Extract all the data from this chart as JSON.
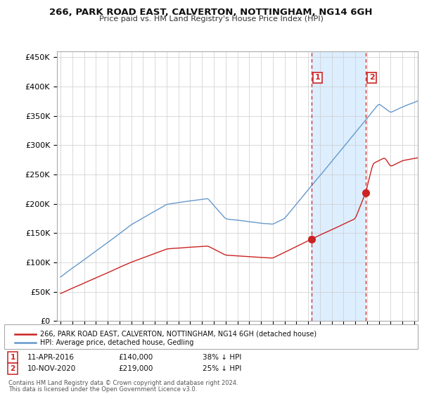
{
  "title": "266, PARK ROAD EAST, CALVERTON, NOTTINGHAM, NG14 6GH",
  "subtitle": "Price paid vs. HM Land Registry's House Price Index (HPI)",
  "ylabel_ticks": [
    "£0",
    "£50K",
    "£100K",
    "£150K",
    "£200K",
    "£250K",
    "£300K",
    "£350K",
    "£400K",
    "£450K"
  ],
  "ytick_vals": [
    0,
    50000,
    100000,
    150000,
    200000,
    250000,
    300000,
    350000,
    400000,
    450000
  ],
  "ylim": [
    0,
    460000
  ],
  "xlim_start": 1994.7,
  "xlim_end": 2025.3,
  "sale1": {
    "date": 2016.28,
    "price": 140000,
    "label": "1"
  },
  "sale2": {
    "date": 2020.87,
    "price": 219000,
    "label": "2"
  },
  "legend_line1": "266, PARK ROAD EAST, CALVERTON, NOTTINGHAM, NG14 6GH (detached house)",
  "legend_line2": "HPI: Average price, detached house, Gedling",
  "footer1": "Contains HM Land Registry data © Crown copyright and database right 2024.",
  "footer2": "This data is licensed under the Open Government Licence v3.0.",
  "table_row1": [
    "1",
    "11-APR-2016",
    "£140,000",
    "38% ↓ HPI"
  ],
  "table_row2": [
    "2",
    "10-NOV-2020",
    "£219,000",
    "25% ↓ HPI"
  ],
  "hpi_color": "#6699cc",
  "price_color": "#cc2222",
  "vline_color": "#cc2222",
  "shade_color": "#ddeeff",
  "background_color": "#ffffff",
  "grid_color": "#cccccc"
}
